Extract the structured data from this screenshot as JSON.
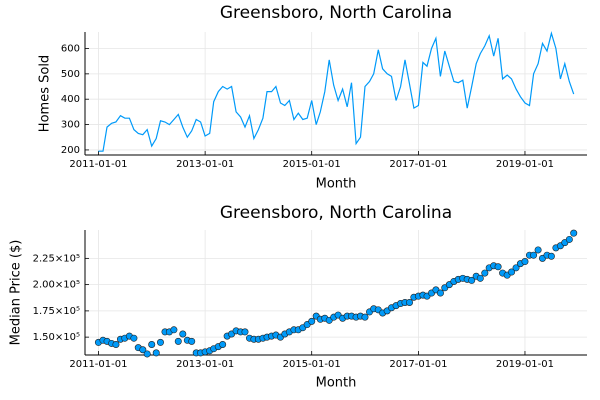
{
  "chart_data": [
    {
      "type": "line",
      "title": "Greensboro, North Carolina",
      "x_label": "Month",
      "y_label": "Homes Sold",
      "x": [
        "2011-01-01",
        "2011-02-01",
        "2011-03-01",
        "2011-04-01",
        "2011-05-01",
        "2011-06-01",
        "2011-07-01",
        "2011-08-01",
        "2011-09-01",
        "2011-10-01",
        "2011-11-01",
        "2011-12-01",
        "2012-01-01",
        "2012-02-01",
        "2012-03-01",
        "2012-04-01",
        "2012-05-01",
        "2012-06-01",
        "2012-07-01",
        "2012-08-01",
        "2012-09-01",
        "2012-10-01",
        "2012-11-01",
        "2012-12-01",
        "2013-01-01",
        "2013-02-01",
        "2013-03-01",
        "2013-04-01",
        "2013-05-01",
        "2013-06-01",
        "2013-07-01",
        "2013-08-01",
        "2013-09-01",
        "2013-10-01",
        "2013-11-01",
        "2013-12-01",
        "2014-01-01",
        "2014-02-01",
        "2014-03-01",
        "2014-04-01",
        "2014-05-01",
        "2014-06-01",
        "2014-07-01",
        "2014-08-01",
        "2014-09-01",
        "2014-10-01",
        "2014-11-01",
        "2014-12-01",
        "2015-01-01",
        "2015-02-01",
        "2015-03-01",
        "2015-04-01",
        "2015-05-01",
        "2015-06-01",
        "2015-07-01",
        "2015-08-01",
        "2015-09-01",
        "2015-10-01",
        "2015-11-01",
        "2015-12-01",
        "2016-01-01",
        "2016-02-01",
        "2016-03-01",
        "2016-04-01",
        "2016-05-01",
        "2016-06-01",
        "2016-07-01",
        "2016-08-01",
        "2016-09-01",
        "2016-10-01",
        "2016-11-01",
        "2016-12-01",
        "2017-01-01",
        "2017-02-01",
        "2017-03-01",
        "2017-04-01",
        "2017-05-01",
        "2017-06-01",
        "2017-07-01",
        "2017-08-01",
        "2017-09-01",
        "2017-10-01",
        "2017-11-01",
        "2017-12-01",
        "2018-01-01",
        "2018-02-01",
        "2018-03-01",
        "2018-04-01",
        "2018-05-01",
        "2018-06-01",
        "2018-07-01",
        "2018-08-01",
        "2018-09-01",
        "2018-10-01",
        "2018-11-01",
        "2018-12-01",
        "2019-01-01",
        "2019-02-01",
        "2019-03-01",
        "2019-04-01",
        "2019-05-01",
        "2019-06-01",
        "2019-07-01",
        "2019-08-01",
        "2019-09-01",
        "2019-10-01",
        "2019-11-01",
        "2019-12-01"
      ],
      "series": [
        {
          "name": "Homes Sold",
          "color": "#009af9",
          "values": [
            195,
            195,
            290,
            305,
            310,
            335,
            325,
            325,
            280,
            265,
            260,
            280,
            215,
            245,
            315,
            310,
            300,
            320,
            340,
            290,
            250,
            275,
            320,
            310,
            255,
            265,
            390,
            430,
            450,
            440,
            450,
            350,
            330,
            290,
            335,
            245,
            280,
            325,
            430,
            430,
            450,
            385,
            375,
            395,
            320,
            345,
            320,
            325,
            395,
            300,
            350,
            430,
            555,
            455,
            395,
            440,
            370,
            465,
            225,
            250,
            450,
            470,
            500,
            595,
            520,
            500,
            490,
            395,
            450,
            555,
            460,
            365,
            375,
            545,
            530,
            600,
            640,
            490,
            590,
            530,
            470,
            465,
            475,
            365,
            450,
            540,
            580,
            610,
            650,
            570,
            640,
            480,
            495,
            480,
            440,
            410,
            385,
            375,
            500,
            540,
            620,
            590,
            660,
            600,
            480,
            540,
            470,
            420
          ]
        }
      ],
      "xlim": [
        "2010-10-01",
        "2020-03-01"
      ],
      "xticks": [
        "2011-01-01",
        "2013-01-01",
        "2015-01-01",
        "2017-01-01",
        "2019-01-01"
      ],
      "ylim": [
        180,
        665
      ],
      "yticks": [
        200,
        300,
        400,
        500,
        600
      ],
      "grid": true
    },
    {
      "type": "scatter",
      "title": "Greensboro, North Carolina",
      "x_label": "Month",
      "y_label": "Median Price ($)",
      "x": [
        "2011-01-01",
        "2011-02-01",
        "2011-03-01",
        "2011-04-01",
        "2011-05-01",
        "2011-06-01",
        "2011-07-01",
        "2011-08-01",
        "2011-09-01",
        "2011-10-01",
        "2011-11-01",
        "2011-12-01",
        "2012-01-01",
        "2012-02-01",
        "2012-03-01",
        "2012-04-01",
        "2012-05-01",
        "2012-06-01",
        "2012-07-01",
        "2012-08-01",
        "2012-09-01",
        "2012-10-01",
        "2012-11-01",
        "2012-12-01",
        "2013-01-01",
        "2013-02-01",
        "2013-03-01",
        "2013-04-01",
        "2013-05-01",
        "2013-06-01",
        "2013-07-01",
        "2013-08-01",
        "2013-09-01",
        "2013-10-01",
        "2013-11-01",
        "2013-12-01",
        "2014-01-01",
        "2014-02-01",
        "2014-03-01",
        "2014-04-01",
        "2014-05-01",
        "2014-06-01",
        "2014-07-01",
        "2014-08-01",
        "2014-09-01",
        "2014-10-01",
        "2014-11-01",
        "2014-12-01",
        "2015-01-01",
        "2015-02-01",
        "2015-03-01",
        "2015-04-01",
        "2015-05-01",
        "2015-06-01",
        "2015-07-01",
        "2015-08-01",
        "2015-09-01",
        "2015-10-01",
        "2015-11-01",
        "2015-12-01",
        "2016-01-01",
        "2016-02-01",
        "2016-03-01",
        "2016-04-01",
        "2016-05-01",
        "2016-06-01",
        "2016-07-01",
        "2016-08-01",
        "2016-09-01",
        "2016-10-01",
        "2016-11-01",
        "2016-12-01",
        "2017-01-01",
        "2017-02-01",
        "2017-03-01",
        "2017-04-01",
        "2017-05-01",
        "2017-06-01",
        "2017-07-01",
        "2017-08-01",
        "2017-09-01",
        "2017-10-01",
        "2017-11-01",
        "2017-12-01",
        "2018-01-01",
        "2018-02-01",
        "2018-03-01",
        "2018-04-01",
        "2018-05-01",
        "2018-06-01",
        "2018-07-01",
        "2018-08-01",
        "2018-09-01",
        "2018-10-01",
        "2018-11-01",
        "2018-12-01",
        "2019-01-01",
        "2019-02-01",
        "2019-03-01",
        "2019-04-01",
        "2019-05-01",
        "2019-06-01",
        "2019-07-01",
        "2019-08-01",
        "2019-09-01",
        "2019-10-01",
        "2019-11-01",
        "2019-12-01"
      ],
      "series": [
        {
          "name": "Median Price ($)",
          "color": "#009af9",
          "values": [
            145000,
            147000,
            146000,
            144000,
            143000,
            148000,
            149000,
            151000,
            149000,
            140000,
            138000,
            134000,
            143000,
            135000,
            145000,
            155000,
            155000,
            157000,
            146000,
            153000,
            147000,
            146000,
            135000,
            135000,
            136000,
            137000,
            139000,
            141000,
            143000,
            151000,
            153000,
            156000,
            155000,
            155000,
            149000,
            148000,
            148000,
            149000,
            150000,
            151000,
            152000,
            150000,
            153000,
            155000,
            157000,
            157000,
            159000,
            162000,
            165000,
            170000,
            167000,
            168000,
            166000,
            169000,
            171000,
            168000,
            170000,
            170000,
            169000,
            170000,
            169000,
            174000,
            177000,
            176000,
            173000,
            175000,
            178000,
            180000,
            182000,
            183000,
            183000,
            188000,
            189000,
            190000,
            189000,
            192000,
            195000,
            192000,
            197000,
            200000,
            203000,
            205000,
            206000,
            205000,
            204000,
            208000,
            206000,
            211000,
            216000,
            218000,
            217000,
            211000,
            209000,
            212000,
            216000,
            220000,
            222000,
            228000,
            228000,
            233000,
            225000,
            228000,
            227000,
            235000,
            237000,
            240000,
            243000,
            249000
          ]
        }
      ],
      "xlim": [
        "2010-10-01",
        "2020-03-01"
      ],
      "xticks": [
        "2011-01-01",
        "2013-01-01",
        "2015-01-01",
        "2017-01-01",
        "2019-01-01"
      ],
      "ylim": [
        133000,
        252000
      ],
      "yticks": [
        {
          "value": 150000,
          "label": "1.50×10⁵"
        },
        {
          "value": 175000,
          "label": "1.75×10⁵"
        },
        {
          "value": 200000,
          "label": "2.00×10⁵"
        },
        {
          "value": 225000,
          "label": "2.25×10⁵"
        }
      ],
      "grid": true
    }
  ]
}
